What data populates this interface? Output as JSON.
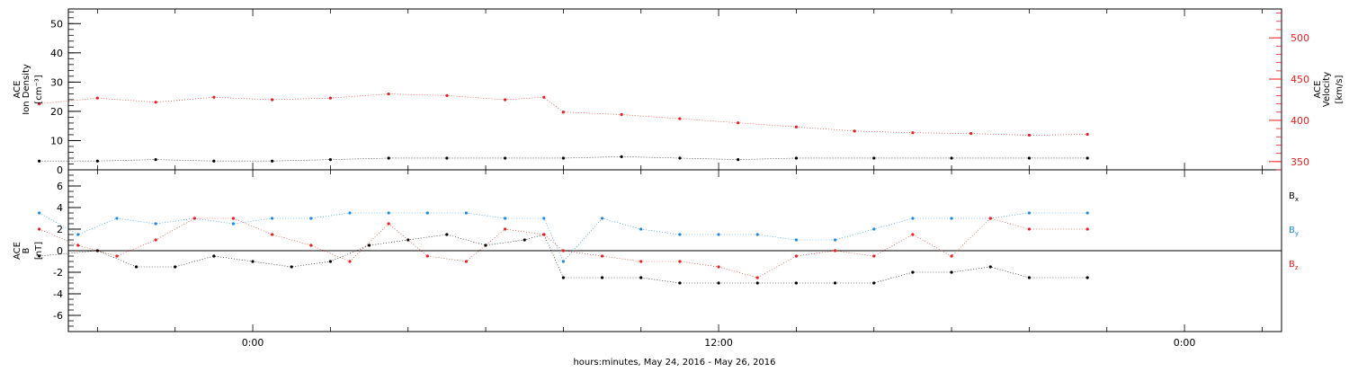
{
  "chart_data": [
    {
      "type": "scatter",
      "panel": "top",
      "left_axis": {
        "label_lines": [
          "ACE",
          "Ion Density"
        ],
        "units": "[cm⁻³]",
        "ylim": [
          0,
          55
        ],
        "ticks": [
          0,
          10,
          20,
          30,
          40,
          50
        ]
      },
      "right_axis": {
        "label_lines": [
          "ACE",
          "Velocity"
        ],
        "units": "[km/s]",
        "ylim": [
          340,
          535
        ],
        "ticks": [
          350,
          400,
          450,
          500
        ],
        "color": "#ee1c1c"
      },
      "series": [
        {
          "axis": "left",
          "color": "#000000",
          "points": [
            [
              -5.5,
              3
            ],
            [
              -4,
              3
            ],
            [
              -2.5,
              3.5
            ],
            [
              -1,
              3
            ],
            [
              0.5,
              3
            ],
            [
              2,
              3.5
            ],
            [
              3.5,
              4
            ],
            [
              5,
              4
            ],
            [
              6.5,
              4
            ],
            [
              8,
              4
            ],
            [
              9.5,
              4.5
            ],
            [
              11,
              4
            ],
            [
              12.5,
              3.5
            ],
            [
              14,
              4
            ],
            [
              16,
              4
            ],
            [
              18,
              4
            ],
            [
              20,
              4
            ],
            [
              21.5,
              4
            ]
          ]
        },
        {
          "axis": "right",
          "color": "#ee1c1c",
          "points": [
            [
              -5.5,
              420
            ],
            [
              -4,
              427
            ],
            [
              -2.5,
              422
            ],
            [
              -1,
              428
            ],
            [
              0.5,
              425
            ],
            [
              2,
              427
            ],
            [
              3.5,
              432
            ],
            [
              5,
              430
            ],
            [
              6.5,
              425
            ],
            [
              7.5,
              428
            ],
            [
              8,
              410
            ],
            [
              9.5,
              407
            ],
            [
              11,
              402
            ],
            [
              12.5,
              397
            ],
            [
              14,
              392
            ],
            [
              15.5,
              387
            ],
            [
              17,
              385
            ],
            [
              18.5,
              384
            ],
            [
              20,
              382
            ],
            [
              21.5,
              383
            ]
          ]
        }
      ]
    },
    {
      "type": "scatter",
      "panel": "bottom",
      "left_axis": {
        "label_lines": [
          "ACE",
          "B"
        ],
        "units": "[nT]",
        "ylim": [
          -7.5,
          7.5
        ],
        "ticks": [
          -6,
          -4,
          -2,
          0,
          2,
          4,
          6
        ]
      },
      "series": [
        {
          "name": "B",
          "sub": "x",
          "color": "#000000",
          "points": [
            [
              -5.5,
              -0.5
            ],
            [
              -4,
              0
            ],
            [
              -3,
              -1.5
            ],
            [
              -2,
              -1.5
            ],
            [
              -1,
              -0.5
            ],
            [
              0,
              -1
            ],
            [
              1,
              -1.5
            ],
            [
              2,
              -1
            ],
            [
              3,
              0.5
            ],
            [
              4,
              1
            ],
            [
              5,
              1.5
            ],
            [
              6,
              0.5
            ],
            [
              7,
              1
            ],
            [
              7.5,
              1.5
            ],
            [
              8,
              -2.5
            ],
            [
              9,
              -2.5
            ],
            [
              10,
              -2.5
            ],
            [
              11,
              -3
            ],
            [
              12,
              -3
            ],
            [
              13,
              -3
            ],
            [
              14,
              -3
            ],
            [
              15,
              -3
            ],
            [
              16,
              -3
            ],
            [
              17,
              -2
            ],
            [
              18,
              -2
            ],
            [
              19,
              -1.5
            ],
            [
              20,
              -2.5
            ],
            [
              21.5,
              -2.5
            ]
          ]
        },
        {
          "name": "B",
          "sub": "y",
          "color": "#1e88e5",
          "points": [
            [
              -5.5,
              3.5
            ],
            [
              -4.5,
              1.5
            ],
            [
              -3.5,
              3
            ],
            [
              -2.5,
              2.5
            ],
            [
              -1.5,
              3
            ],
            [
              -0.5,
              2.5
            ],
            [
              0.5,
              3
            ],
            [
              1.5,
              3
            ],
            [
              2.5,
              3.5
            ],
            [
              3.5,
              3.5
            ],
            [
              4.5,
              3.5
            ],
            [
              5.5,
              3.5
            ],
            [
              6.5,
              3
            ],
            [
              7.5,
              3
            ],
            [
              8,
              -1
            ],
            [
              9,
              3
            ],
            [
              10,
              2
            ],
            [
              11,
              1.5
            ],
            [
              12,
              1.5
            ],
            [
              13,
              1.5
            ],
            [
              14,
              1
            ],
            [
              15,
              1
            ],
            [
              16,
              2
            ],
            [
              17,
              3
            ],
            [
              18,
              3
            ],
            [
              19,
              3
            ],
            [
              20,
              3.5
            ],
            [
              21.5,
              3.5
            ]
          ]
        },
        {
          "name": "B",
          "sub": "z",
          "color": "#ee1c1c",
          "points": [
            [
              -5.5,
              2
            ],
            [
              -4.5,
              0.5
            ],
            [
              -3.5,
              -0.5
            ],
            [
              -2.5,
              1
            ],
            [
              -1.5,
              3
            ],
            [
              -0.5,
              3
            ],
            [
              0.5,
              1.5
            ],
            [
              1.5,
              0.5
            ],
            [
              2.5,
              -1
            ],
            [
              3.5,
              2.5
            ],
            [
              4.5,
              -0.5
            ],
            [
              5.5,
              -1
            ],
            [
              6.5,
              2
            ],
            [
              7.5,
              1.5
            ],
            [
              8,
              0
            ],
            [
              9,
              -0.5
            ],
            [
              10,
              -1
            ],
            [
              11,
              -1
            ],
            [
              12,
              -1.5
            ],
            [
              13,
              -2.5
            ],
            [
              14,
              -0.5
            ],
            [
              15,
              0
            ],
            [
              16,
              -0.5
            ],
            [
              17,
              1.5
            ],
            [
              18,
              -0.5
            ],
            [
              19,
              3
            ],
            [
              20,
              2
            ],
            [
              21.5,
              2
            ]
          ]
        }
      ]
    }
  ],
  "x_axis": {
    "xlim": [
      -4.75,
      26.5
    ],
    "tick_labels": [
      {
        "x": 0,
        "text": "0:00"
      },
      {
        "x": 12,
        "text": "12:00"
      },
      {
        "x": 24,
        "text": "0:00"
      }
    ],
    "title": "hours:minutes, May 24, 2016 - May 26, 2016"
  }
}
